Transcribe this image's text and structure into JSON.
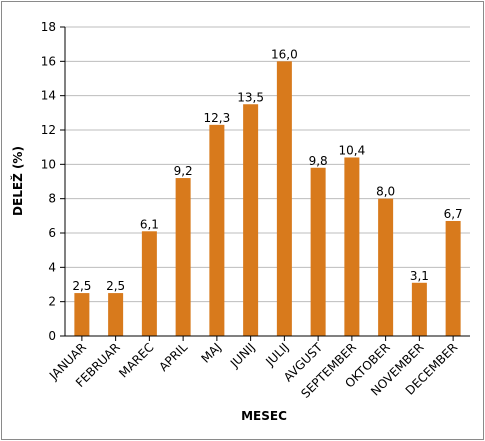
{
  "chart_data": {
    "type": "bar",
    "categories": [
      "JANUAR",
      "FEBRUAR",
      "MAREC",
      "APRIL",
      "MAJ",
      "JUNIJ",
      "JULIJ",
      "AVGUST",
      "SEPTEMBER",
      "OKTOBER",
      "NOVEMBER",
      "DECEMBER"
    ],
    "values": [
      2.5,
      2.5,
      6.1,
      9.2,
      12.3,
      13.5,
      16.0,
      9.8,
      10.4,
      8.0,
      3.1,
      6.7
    ],
    "value_labels": [
      "2,5",
      "2,5",
      "6,1",
      "9,2",
      "12,3",
      "13,5",
      "16,0",
      "9,8",
      "10,4",
      "8,0",
      "3,1",
      "6,7"
    ],
    "xlabel": "MESEC",
    "ylabel": "DELEŽ (%)",
    "ylim": [
      0,
      18
    ],
    "yticks": [
      0,
      2,
      4,
      6,
      8,
      10,
      12,
      14,
      16,
      18
    ],
    "grid": "horizontal",
    "bar_color": "#d87a1c",
    "grid_color": "#bdbdbd"
  }
}
